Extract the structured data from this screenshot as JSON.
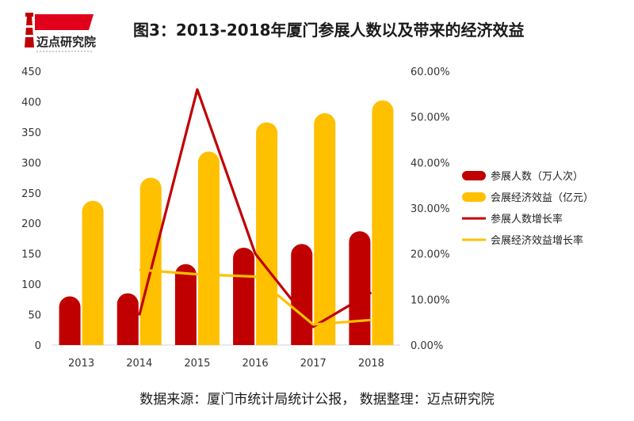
{
  "brand": {
    "name": "迈点研究院"
  },
  "colors": {
    "red": "#C00000",
    "gold": "#FFC000"
  },
  "chart_data": {
    "type": "bar",
    "title": "图3：2013-2018年厦门参展人数以及带来的经济效益",
    "categories": [
      "2013",
      "2014",
      "2015",
      "2016",
      "2017",
      "2018"
    ],
    "y_left": {
      "ticks": [
        "0",
        "50",
        "100",
        "150",
        "200",
        "250",
        "300",
        "350",
        "400",
        "450"
      ],
      "ylim": [
        0,
        450
      ]
    },
    "y_right": {
      "ticks": [
        "0.00%",
        "10.00%",
        "20.00%",
        "30.00%",
        "40.00%",
        "50.00%",
        "60.00%"
      ],
      "ylim": [
        0,
        60
      ]
    },
    "series": [
      {
        "name": "参展人数（万人次）",
        "type": "bar",
        "axis": "left",
        "color": "#C00000",
        "values": [
          80,
          85,
          133,
          160,
          166,
          187
        ]
      },
      {
        "name": "会展经济效益（亿元）",
        "type": "bar",
        "axis": "left",
        "color": "#FFC000",
        "values": [
          237,
          275,
          318,
          366,
          381,
          402
        ]
      },
      {
        "name": "参展人数增长率",
        "type": "line",
        "axis": "right",
        "color": "#C00000",
        "x": [
          "2014",
          "2015",
          "2016",
          "2017",
          "2018"
        ],
        "values": [
          6.5,
          56,
          20,
          4,
          11.5
        ]
      },
      {
        "name": "会展经济效益增长率",
        "type": "line",
        "axis": "right",
        "color": "#FFC000",
        "x": [
          "2014",
          "2015",
          "2016",
          "2017",
          "2018"
        ],
        "values": [
          16.5,
          15.5,
          15,
          4.5,
          5.5
        ]
      }
    ],
    "legend": "right",
    "grid": false
  },
  "footer": {
    "text": "数据来源：厦门市统计局统计公报， 数据整理：迈点研究院"
  }
}
